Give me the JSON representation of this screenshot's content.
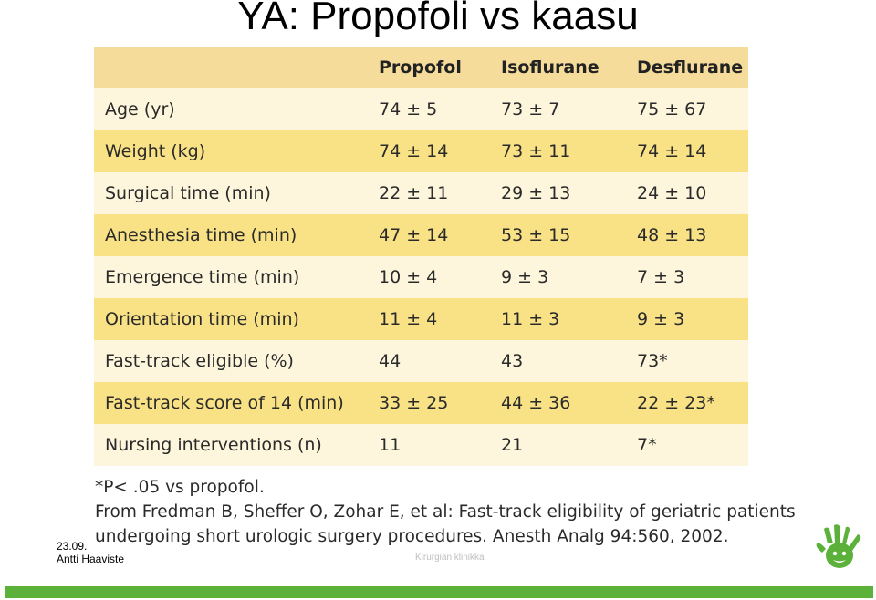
{
  "slide": {
    "title": "YA: Propofoli vs kaasu",
    "date_fragment": "23.09.",
    "author_fragment": "Antti Haaviste",
    "center_footer": "Kirurgian klinikka",
    "colors": {
      "header_band": "#f5dc9b",
      "band_light": "#fdf6dc",
      "band_dark": "#f8e285",
      "footer_bar": "#5bb13a",
      "logo": "#5bb13a"
    }
  },
  "table": {
    "headers": [
      "",
      "Propofol",
      "Isoflurane",
      "Desflurane"
    ],
    "rows": [
      [
        "Age (yr)",
        "74 ± 5",
        "73 ± 7",
        "75 ± 67"
      ],
      [
        "Weight (kg)",
        "74 ± 14",
        "73 ± 11",
        "74 ± 14"
      ],
      [
        "Surgical time (min)",
        "22 ± 11",
        "29 ± 13",
        "24 ± 10"
      ],
      [
        "Anesthesia time (min)",
        "47 ± 14",
        "53 ± 15",
        "48 ± 13"
      ],
      [
        "Emergence time (min)",
        "10 ± 4",
        "9 ± 3",
        "7 ± 3"
      ],
      [
        "Orientation time (min)",
        "11 ± 4",
        "11 ± 3",
        "9 ± 3"
      ],
      [
        "Fast-track eligible (%)",
        "44",
        "43",
        "73*"
      ],
      [
        "Fast-track score of 14 (min)",
        "33 ± 25",
        "44 ± 36",
        "22 ± 23*"
      ],
      [
        "Nursing interventions (n)",
        "11",
        "21",
        "7*"
      ]
    ]
  },
  "notes": {
    "footnote": "*P< .05 vs propofol.",
    "source_line1": "From Fredman B, Sheffer O, Zohar E, et al: Fast-track eligibility of geriatric patients",
    "source_line2": "undergoing short urologic surgery procedures. Anesth Analg 94:560, 2002."
  }
}
